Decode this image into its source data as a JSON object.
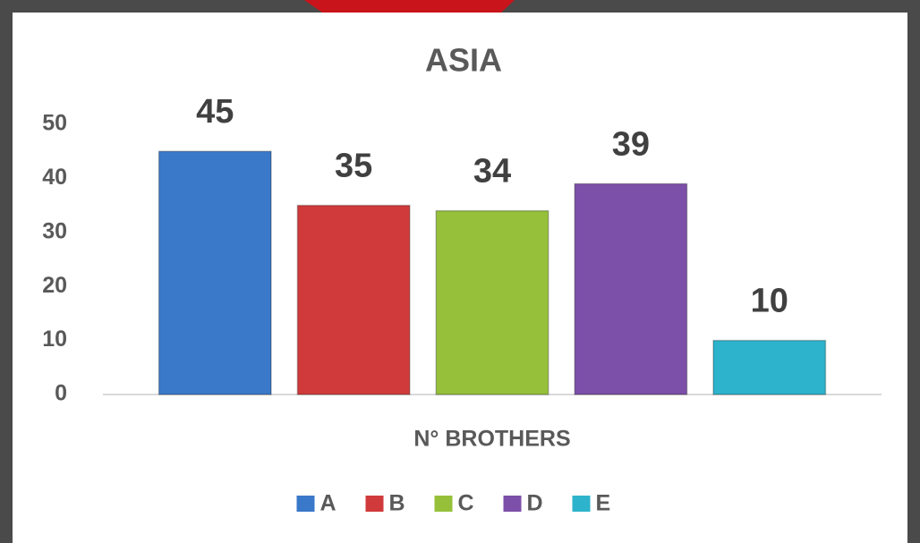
{
  "chart_data": {
    "type": "bar",
    "title": "ASIA",
    "categories": [
      "N° BROTHERS"
    ],
    "series": [
      {
        "name": "A",
        "color": "#3a78c9",
        "values": [
          45
        ]
      },
      {
        "name": "B",
        "color": "#d03a3a",
        "values": [
          35
        ]
      },
      {
        "name": "C",
        "color": "#96c03a",
        "values": [
          34
        ]
      },
      {
        "name": "D",
        "color": "#7c4fa8",
        "values": [
          39
        ]
      },
      {
        "name": "E",
        "color": "#2eb3cc",
        "values": [
          10
        ]
      }
    ],
    "ylim": [
      0,
      50
    ],
    "yticks": [
      0,
      10,
      20,
      30,
      40,
      50
    ],
    "grid": false,
    "legend": "bottom"
  }
}
